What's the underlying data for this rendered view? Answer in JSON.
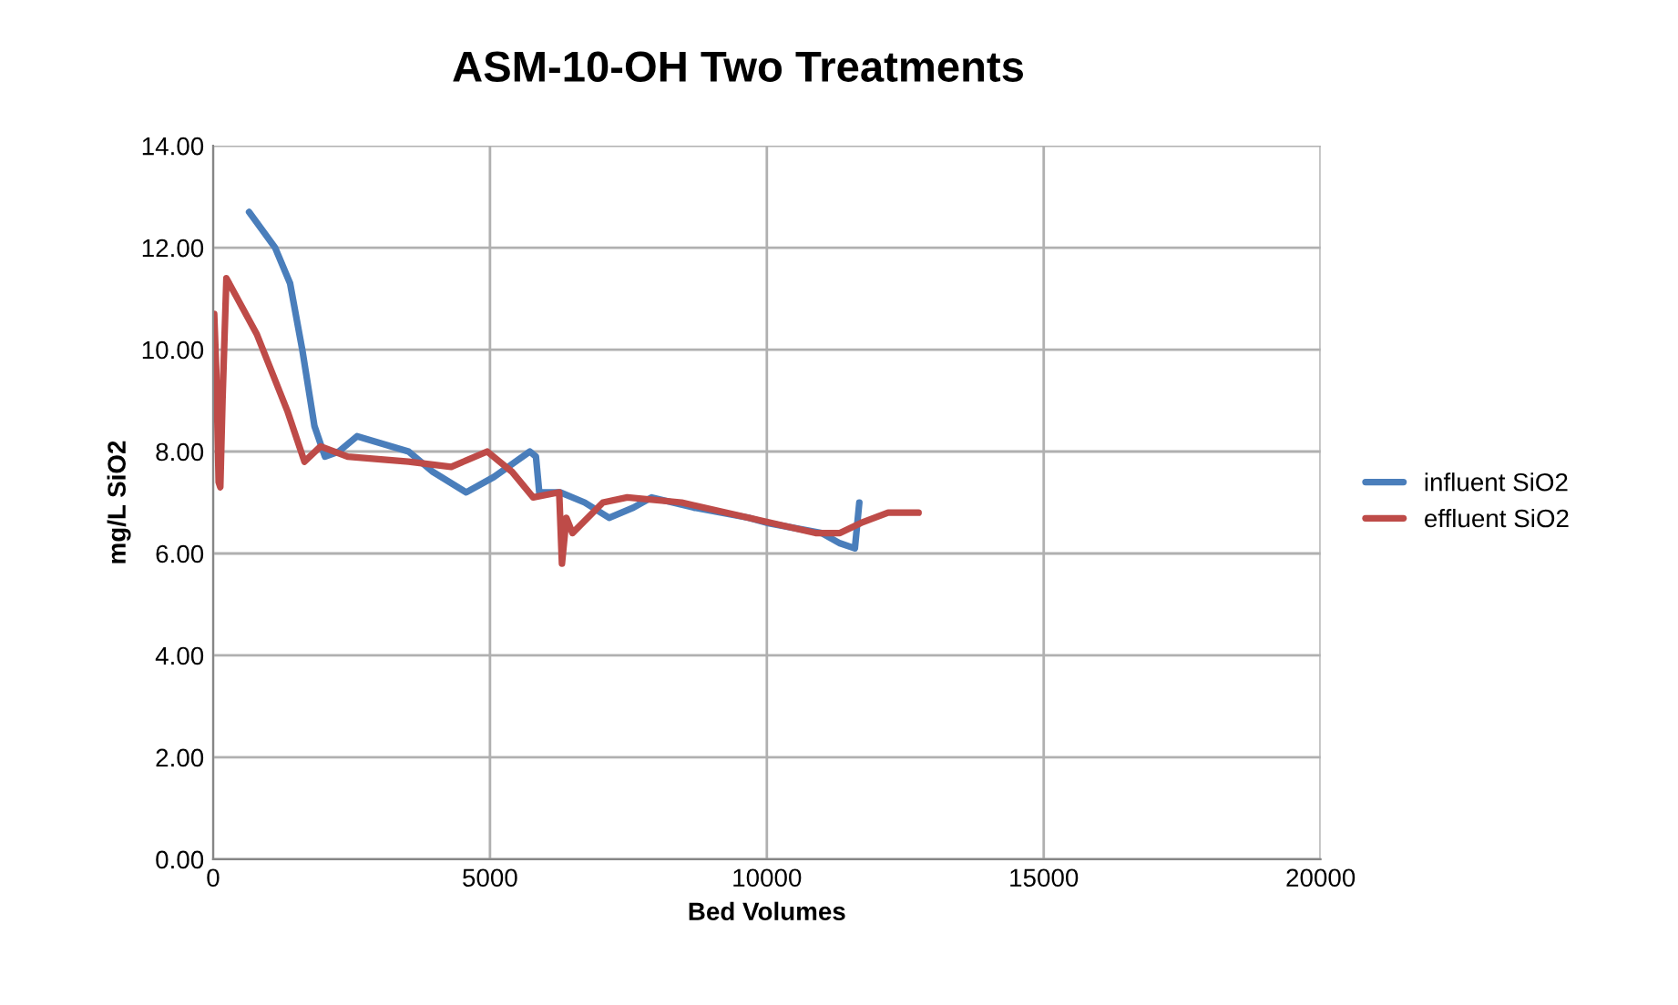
{
  "chart_data": {
    "type": "line",
    "title": "ASM-10-OH Two Treatments",
    "xlabel": "Bed Volumes",
    "ylabel": "mg/L SiO2",
    "xlim": [
      0,
      20000
    ],
    "xticks": [
      0,
      5000,
      10000,
      15000,
      20000
    ],
    "ylim": [
      0,
      14
    ],
    "yticks": [
      {
        "value": 0,
        "label": "0.00"
      },
      {
        "value": 2,
        "label": "2.00"
      },
      {
        "value": 4,
        "label": "4.00"
      },
      {
        "value": 6,
        "label": "6.00"
      },
      {
        "value": 8,
        "label": "8.00"
      },
      {
        "value": 10,
        "label": "10.00"
      },
      {
        "value": 12,
        "label": "12.00"
      },
      {
        "value": 14,
        "label": "14.00"
      }
    ],
    "grid": true,
    "legend": "right",
    "marker": "none",
    "line_style": "solid",
    "series": [
      {
        "name": "influent SiO2",
        "color": "#4a7ebb",
        "x": [
          650,
          1120,
          1390,
          1610,
          1830,
          2020,
          2270,
          2600,
          3530,
          3970,
          4570,
          5070,
          5720,
          5830,
          5890,
          6270,
          6710,
          7150,
          7590,
          7920,
          8680,
          9670,
          10000,
          10990,
          11320,
          11590,
          11670
        ],
        "values": [
          12.7,
          12.0,
          11.3,
          10.0,
          8.5,
          7.9,
          8.0,
          8.3,
          8.0,
          7.6,
          7.2,
          7.5,
          8.0,
          7.9,
          7.2,
          7.2,
          7.0,
          6.7,
          6.9,
          7.1,
          6.9,
          6.7,
          6.6,
          6.4,
          6.2,
          6.1,
          7.0
        ]
      },
      {
        "name": "effluent SiO2",
        "color": "#be4b48",
        "x": [
          20,
          60,
          100,
          130,
          170,
          240,
          790,
          1340,
          1650,
          1940,
          2430,
          3530,
          4300,
          4950,
          5400,
          5780,
          6250,
          6300,
          6380,
          6490,
          7040,
          7480,
          8460,
          9670,
          10880,
          11320,
          11700,
          12190,
          12740
        ],
        "values": [
          10.7,
          9.5,
          7.4,
          7.3,
          9.0,
          11.4,
          10.3,
          8.8,
          7.8,
          8.1,
          7.9,
          7.8,
          7.7,
          8.0,
          7.6,
          7.1,
          7.2,
          5.8,
          6.7,
          6.4,
          7.0,
          7.1,
          7.0,
          6.7,
          6.4,
          6.4,
          6.6,
          6.8,
          6.8
        ]
      }
    ]
  }
}
